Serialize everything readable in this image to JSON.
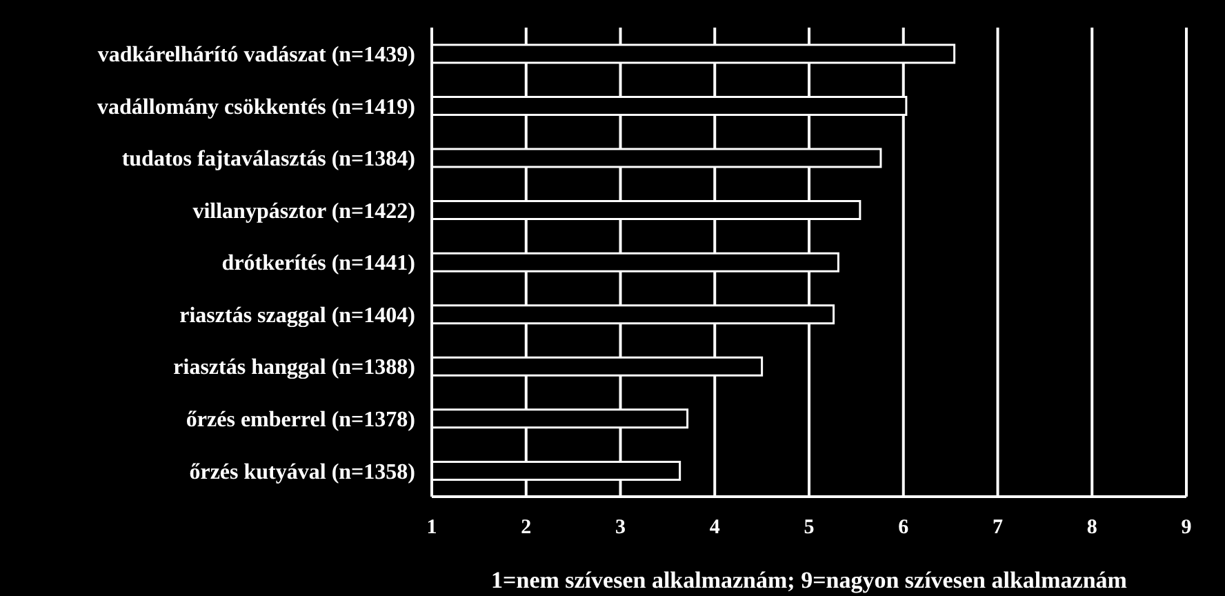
{
  "chart_data": {
    "type": "bar",
    "orientation": "horizontal",
    "xlabel": "1=nem szívesen alkalmaznám; 9=nagyon szívesen alkalmaznám",
    "categories": [
      "vadkárelhárító vadászat (n=1439)",
      "vadállomány csökkentés (n=1419)",
      "tudatos fajtaválasztás (n=1384)",
      "villanypásztor (n=1422)",
      "drótkerítés (n=1441)",
      "riasztás szaggal (n=1404)",
      "riasztás hanggal (n=1388)",
      "őrzés emberrel (n=1378)",
      "őrzés kutyával (n=1358)"
    ],
    "values": [
      6.54,
      6.03,
      5.76,
      5.54,
      5.31,
      5.26,
      4.5,
      3.71,
      3.63
    ],
    "color": "#000000",
    "xlim": [
      1,
      9
    ],
    "xticks": [
      1,
      2,
      3,
      4,
      5,
      6,
      7,
      8,
      9
    ],
    "grid": "x"
  }
}
